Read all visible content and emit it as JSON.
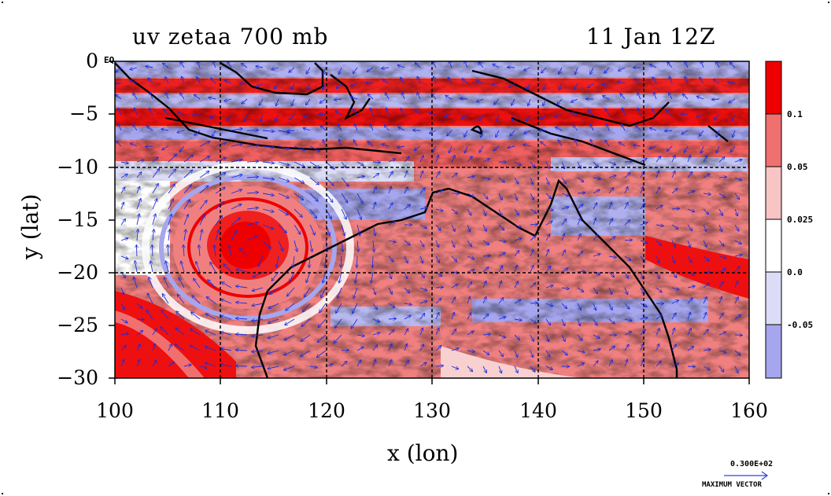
{
  "header": {
    "title_left": "uv zetaa 700 mb",
    "title_right": "11 Jan 12Z"
  },
  "map": {
    "equator_label": "EQ"
  },
  "colorbar": {
    "labels": [
      "0.1",
      "0.05",
      "0.025",
      "0.0",
      "-0.05"
    ],
    "colors": [
      "#ee0000",
      "#f07070",
      "#f8c4c4",
      "#ffffff",
      "#dcdcf6",
      "#a6a6ee"
    ]
  },
  "legend": {
    "max_vector_value": "0.300E+02",
    "max_vector_label": "MAXIMUM VECTOR"
  },
  "chart_data": {
    "type": "heatmap",
    "title": "uv zetaa 700 mb",
    "subtitle": "11 Jan 12Z",
    "xlabel": "x (lon)",
    "ylabel": "y (lat)",
    "xlim": [
      100,
      160
    ],
    "ylim": [
      -30,
      0
    ],
    "x_ticks": [
      100,
      110,
      120,
      130,
      140,
      150,
      160
    ],
    "y_ticks": [
      0,
      -5,
      -10,
      -15,
      -20,
      -25,
      -30
    ],
    "x_tick_labels": [
      "100",
      "110",
      "120",
      "130",
      "140",
      "150",
      "160"
    ],
    "y_tick_labels": [
      "0",
      "−5",
      "−10",
      "−15",
      "−20",
      "−25",
      "−30"
    ],
    "grid_lines_x": [
      110,
      120,
      130,
      140,
      150
    ],
    "grid_lines_y": [
      -10,
      -20
    ],
    "contour_levels": [
      -0.05,
      0.0,
      0.025,
      0.05,
      0.1
    ],
    "vortex_center": {
      "lon": 113,
      "lat": -18
    },
    "vector_field": "uv wind at 700 mb",
    "max_vector": 30
  }
}
